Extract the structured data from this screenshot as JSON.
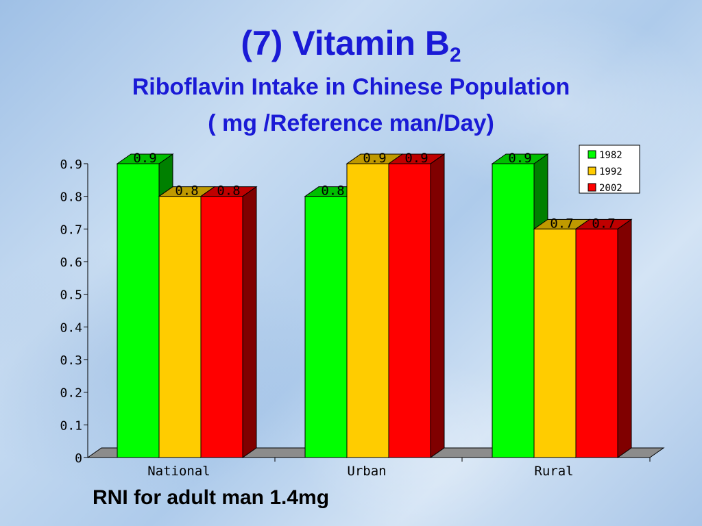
{
  "title": {
    "main": "(7) Vitamin B",
    "subscript": "2"
  },
  "subtitle_line1": "Riboflavin  Intake in Chinese Population",
  "subtitle_line2": "( mg  /Reference man/Day)",
  "footnote": "RNI for adult man 1.4mg",
  "colors": {
    "1982": "#00ff00",
    "1992": "#ffcc00",
    "2002": "#ff0000",
    "title": "#1a1ad6"
  },
  "chart_data": {
    "type": "bar",
    "categories": [
      "National",
      "Urban",
      "Rural"
    ],
    "series": [
      {
        "name": "1982",
        "values": [
          0.9,
          0.8,
          0.9
        ]
      },
      {
        "name": "1992",
        "values": [
          0.8,
          0.9,
          0.7
        ]
      },
      {
        "name": "2002",
        "values": [
          0.8,
          0.9,
          0.7
        ]
      }
    ],
    "data_labels": [
      [
        "0.9",
        "0.8",
        "0.8"
      ],
      [
        "0.8",
        "0.9",
        "0.9"
      ],
      [
        "0.9",
        "0.7",
        "0.7"
      ]
    ],
    "yticks": [
      "0",
      "0.1",
      "0.2",
      "0.3",
      "0.4",
      "0.5",
      "0.6",
      "0.7",
      "0.8",
      "0.9"
    ],
    "ylim": [
      0,
      0.9
    ],
    "grid": false,
    "legend_position": "top-right",
    "three_d": true
  }
}
